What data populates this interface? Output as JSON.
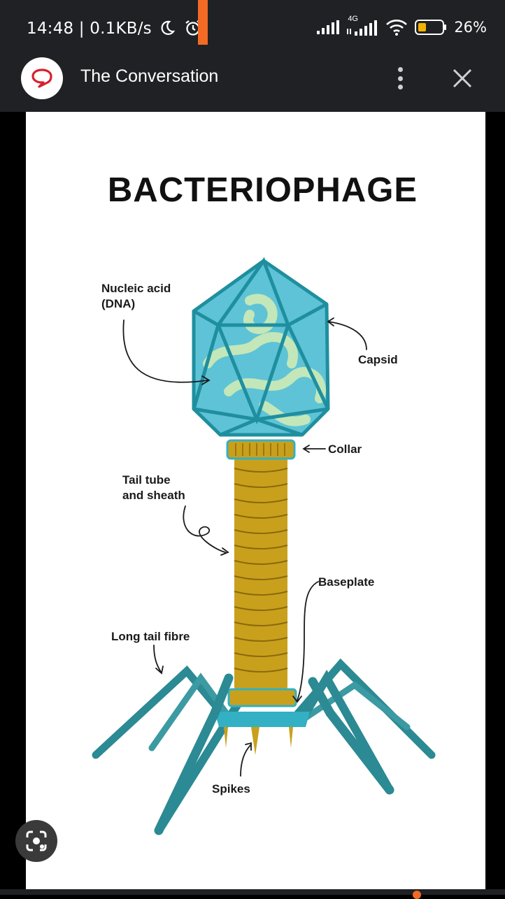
{
  "status": {
    "time": "14:48",
    "net_speed": "0.1KB/s",
    "network_type": "4G",
    "battery_percent": "26%",
    "icons": [
      "moon-icon",
      "alarm-icon",
      "signal-icon",
      "signal-4g-icon",
      "wifi-icon",
      "battery-icon"
    ]
  },
  "app": {
    "title": "The Conversation",
    "logo_icon": "speech-bubble-icon",
    "menu_icon": "more-vertical-icon",
    "close_icon": "close-icon"
  },
  "diagram": {
    "title": "BACTERIOPHAGE",
    "labels": {
      "nucleic_acid_line1": "Nucleic acid",
      "nucleic_acid_line2": "(DNA)",
      "capsid": "Capsid",
      "collar": "Collar",
      "tail_tube_line1": "Tail tube",
      "tail_tube_line2": "and sheath",
      "baseplate": "Baseplate",
      "long_tail_fibre": "Long tail fibre",
      "spikes": "Spikes"
    },
    "colors": {
      "capsid": "#5ec3d6",
      "capsid_edge": "#1f8f9f",
      "dna": "#c9e9b8",
      "tail": "#c9a01c",
      "tail_dark": "#8a6a0a",
      "fibre": "#2b8a93",
      "baseplate": "#33b0c4"
    }
  },
  "lens_button_icon": "camera-lens-icon"
}
